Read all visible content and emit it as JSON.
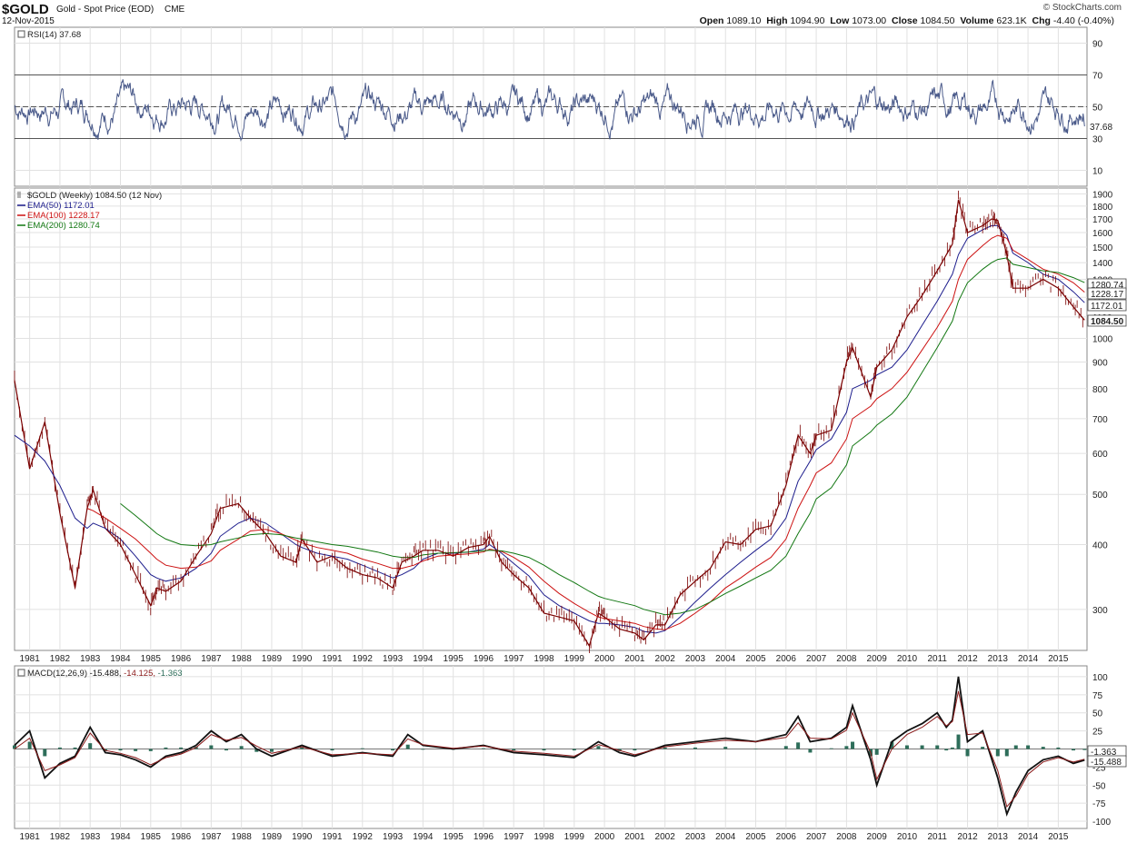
{
  "header": {
    "symbol": "$GOLD",
    "name": "Gold - Spot Price (EOD)",
    "exchange": "CME",
    "date": "12-Nov-2015",
    "watermark": "© StockCharts.com",
    "quote": [
      {
        "label": "Open",
        "value": "1089.10"
      },
      {
        "label": "High",
        "value": "1094.90"
      },
      {
        "label": "Low",
        "value": "1073.00"
      },
      {
        "label": "Close",
        "value": "1084.50"
      },
      {
        "label": "Volume",
        "value": "623.1K"
      },
      {
        "label": "Chg",
        "value": "-4.40 (-0.40%)"
      }
    ]
  },
  "chart_data": [
    {
      "type": "line",
      "panel": "rsi",
      "legend": "RSI(14) 37.68",
      "ylim": [
        0,
        100
      ],
      "yticks": [
        "10",
        "30",
        "50",
        "70",
        "90"
      ],
      "reference_lines": [
        30,
        50,
        70
      ],
      "last_value": "37.68",
      "color": "#4a5a8a"
    },
    {
      "type": "line",
      "panel": "price",
      "scale": "log",
      "title": "$GOLD (Weekly) 1084.50 (12 Nov)",
      "ylim": [
        250,
        1950
      ],
      "yticks": [
        "300",
        "400",
        "500",
        "600",
        "700",
        "800",
        "900",
        "1000",
        "1100",
        "1200",
        "1300",
        "1400",
        "1500",
        "1600",
        "1700",
        "1800",
        "1900"
      ],
      "last_price": "1084.50",
      "x": [
        "1980.5",
        "1981.0",
        "1981.5",
        "1982.0",
        "1982.5",
        "1982.9",
        "1983.1",
        "1983.5",
        "1984.0",
        "1984.5",
        "1985.0",
        "1985.2",
        "1985.5",
        "1986.0",
        "1986.5",
        "1987.0",
        "1987.3",
        "1987.9",
        "1988.3",
        "1988.8",
        "1989.3",
        "1989.8",
        "1990.0",
        "1990.5",
        "1991.0",
        "1991.5",
        "1992.0",
        "1992.5",
        "1993.0",
        "1993.3",
        "1993.7",
        "1994.0",
        "1994.5",
        "1995.0",
        "1995.5",
        "1996.0",
        "1996.2",
        "1996.6",
        "1997.0",
        "1997.5",
        "1998.0",
        "1998.5",
        "1999.0",
        "1999.5",
        "1999.8",
        "2000.0",
        "2000.5",
        "2001.0",
        "2001.3",
        "2001.7",
        "2002.0",
        "2002.5",
        "2003.0",
        "2003.5",
        "2004.0",
        "2004.5",
        "2005.0",
        "2005.5",
        "2006.0",
        "2006.4",
        "2006.8",
        "2007.0",
        "2007.5",
        "2008.0",
        "2008.2",
        "2008.8",
        "2009.0",
        "2009.5",
        "2010.0",
        "2010.5",
        "2011.0",
        "2011.5",
        "2011.7",
        "2012.0",
        "2012.5",
        "2012.8",
        "2013.0",
        "2013.3",
        "2013.5",
        "2014.0",
        "2014.5",
        "2015.0",
        "2015.5",
        "2015.87"
      ],
      "series": [
        {
          "name": "$GOLD",
          "color": "#7a0000",
          "values": [
            830,
            560,
            690,
            460,
            330,
            470,
            510,
            430,
            400,
            350,
            305,
            330,
            325,
            340,
            380,
            420,
            470,
            480,
            450,
            420,
            380,
            370,
            410,
            370,
            380,
            360,
            350,
            345,
            330,
            370,
            380,
            390,
            390,
            380,
            395,
            400,
            415,
            370,
            350,
            330,
            295,
            290,
            285,
            255,
            295,
            290,
            275,
            270,
            262,
            280,
            280,
            320,
            340,
            360,
            405,
            400,
            428,
            435,
            520,
            650,
            600,
            650,
            665,
            900,
            960,
            770,
            880,
            950,
            1100,
            1210,
            1350,
            1520,
            1850,
            1600,
            1650,
            1700,
            1690,
            1450,
            1250,
            1250,
            1300,
            1250,
            1150,
            1084.5
          ]
        },
        {
          "name": "EMA(50) 1172.01",
          "color": "#1c1c8c",
          "values": [
            650,
            620,
            580,
            520,
            450,
            430,
            440,
            430,
            410,
            380,
            350,
            345,
            340,
            345,
            360,
            385,
            415,
            440,
            450,
            440,
            420,
            400,
            395,
            385,
            380,
            375,
            365,
            355,
            345,
            350,
            360,
            375,
            385,
            385,
            387,
            392,
            400,
            385,
            368,
            348,
            320,
            305,
            295,
            285,
            282,
            282,
            280,
            277,
            272,
            270,
            273,
            290,
            310,
            330,
            350,
            370,
            390,
            410,
            450,
            530,
            580,
            610,
            640,
            720,
            800,
            830,
            850,
            880,
            950,
            1060,
            1180,
            1330,
            1450,
            1560,
            1620,
            1650,
            1650,
            1580,
            1460,
            1400,
            1330,
            1300,
            1230,
            1172
          ]
        },
        {
          "name": "EMA(100) 1228.17",
          "color": "#cc1111",
          "values": [
            null,
            null,
            null,
            null,
            null,
            470,
            465,
            450,
            430,
            410,
            385,
            375,
            365,
            360,
            362,
            372,
            390,
            410,
            425,
            428,
            420,
            408,
            403,
            395,
            390,
            385,
            375,
            368,
            360,
            360,
            365,
            372,
            380,
            382,
            384,
            387,
            392,
            388,
            378,
            362,
            340,
            322,
            308,
            296,
            290,
            288,
            285,
            282,
            278,
            275,
            274,
            282,
            295,
            310,
            330,
            345,
            362,
            378,
            410,
            470,
            520,
            550,
            575,
            640,
            700,
            740,
            765,
            800,
            860,
            950,
            1050,
            1180,
            1300,
            1420,
            1510,
            1560,
            1580,
            1560,
            1480,
            1420,
            1360,
            1330,
            1280,
            1228
          ]
        },
        {
          "name": "EMA(200) 1280.74",
          "color": "#117711",
          "values": [
            null,
            null,
            null,
            null,
            null,
            null,
            null,
            null,
            480,
            455,
            430,
            420,
            410,
            400,
            398,
            400,
            405,
            412,
            418,
            420,
            418,
            412,
            410,
            405,
            400,
            397,
            392,
            387,
            380,
            378,
            378,
            382,
            385,
            386,
            387,
            389,
            390,
            389,
            385,
            378,
            365,
            350,
            338,
            325,
            318,
            315,
            310,
            305,
            300,
            296,
            293,
            295,
            300,
            310,
            322,
            333,
            345,
            357,
            380,
            420,
            460,
            490,
            515,
            570,
            620,
            660,
            680,
            715,
            770,
            860,
            960,
            1080,
            1180,
            1280,
            1360,
            1400,
            1420,
            1430,
            1390,
            1370,
            1350,
            1340,
            1310,
            1281
          ]
        }
      ],
      "ema_legend": [
        {
          "label": "EMA(50)",
          "value": "1172.01",
          "color": "#1c1c8c"
        },
        {
          "label": "EMA(100)",
          "value": "1228.17",
          "color": "#cc1111"
        },
        {
          "label": "EMA(200)",
          "value": "1280.74",
          "color": "#117711"
        }
      ],
      "axis_labels": [
        {
          "text": "1280.74",
          "value": 1280.74,
          "highlight": false
        },
        {
          "text": "1228.17",
          "value": 1228.17,
          "highlight": false
        },
        {
          "text": "1172.01",
          "value": 1172.01,
          "highlight": false
        },
        {
          "text": "1084.50",
          "value": 1084.5,
          "highlight": true
        }
      ]
    },
    {
      "type": "line",
      "panel": "macd",
      "legend": {
        "label": "MACD(12,26,9)",
        "values": [
          "-15.488",
          "-14.125",
          "-1.363"
        ],
        "colors": [
          "#111111",
          "#8b1a1a",
          "#2e6e5a"
        ]
      },
      "ylim": [
        -110,
        115
      ],
      "yticks": [
        "-100",
        "-75",
        "-50",
        "-25",
        "0",
        "25",
        "50",
        "75",
        "100"
      ],
      "zero_line": 0,
      "x": [
        "1980.5",
        "1981.0",
        "1981.5",
        "1982.0",
        "1982.5",
        "1983.0",
        "1983.5",
        "1984.0",
        "1984.5",
        "1985.0",
        "1985.5",
        "1986.0",
        "1986.5",
        "1987.0",
        "1987.5",
        "1988.0",
        "1988.5",
        "1989.0",
        "1990.0",
        "1991.0",
        "1992.0",
        "1993.0",
        "1993.5",
        "1994.0",
        "1995.0",
        "1996.0",
        "1997.0",
        "1998.0",
        "1999.0",
        "1999.8",
        "2000.5",
        "2001.0",
        "2002.0",
        "2003.0",
        "2004.0",
        "2005.0",
        "2006.0",
        "2006.4",
        "2006.8",
        "2007.5",
        "2008.0",
        "2008.2",
        "2008.8",
        "2009.0",
        "2009.5",
        "2010.0",
        "2010.5",
        "2011.0",
        "2011.3",
        "2011.5",
        "2011.7",
        "2012.0",
        "2012.5",
        "2013.0",
        "2013.3",
        "2013.6",
        "2014.0",
        "2014.5",
        "2015.0",
        "2015.5",
        "2015.87"
      ],
      "series": [
        {
          "name": "MACD",
          "color": "#111111",
          "values": [
            5,
            25,
            -40,
            -20,
            -10,
            30,
            -5,
            -8,
            -15,
            -25,
            -10,
            -5,
            5,
            25,
            10,
            20,
            0,
            -10,
            5,
            -10,
            -5,
            -10,
            20,
            5,
            0,
            5,
            -5,
            -8,
            -12,
            10,
            -5,
            -10,
            5,
            10,
            15,
            10,
            20,
            45,
            10,
            15,
            30,
            60,
            -15,
            -50,
            10,
            25,
            35,
            50,
            30,
            40,
            100,
            10,
            25,
            -40,
            -90,
            -60,
            -30,
            -15,
            -10,
            -20,
            -15.5
          ]
        },
        {
          "name": "Signal",
          "color": "#8b1a1a",
          "values": [
            0,
            15,
            -30,
            -22,
            -12,
            22,
            -2,
            -6,
            -12,
            -22,
            -12,
            -7,
            2,
            20,
            12,
            16,
            4,
            -6,
            3,
            -8,
            -6,
            -8,
            14,
            6,
            1,
            4,
            -3,
            -6,
            -10,
            6,
            -2,
            -8,
            3,
            8,
            12,
            10,
            16,
            36,
            15,
            14,
            26,
            50,
            -5,
            -42,
            0,
            20,
            30,
            45,
            32,
            38,
            80,
            20,
            22,
            -30,
            -80,
            -65,
            -35,
            -18,
            -12,
            -18,
            -14.1
          ]
        }
      ],
      "histogram": {
        "name": "Histogram",
        "color": "#2e6e5a",
        "values": [
          5,
          10,
          -10,
          2,
          2,
          8,
          -3,
          -2,
          -3,
          -3,
          2,
          2,
          3,
          5,
          -2,
          4,
          -4,
          -4,
          2,
          -2,
          1,
          -2,
          6,
          -1,
          -1,
          1,
          -2,
          -2,
          -2,
          4,
          -3,
          -2,
          2,
          2,
          3,
          0,
          4,
          9,
          -5,
          1,
          4,
          10,
          -10,
          -8,
          10,
          5,
          5,
          5,
          -2,
          2,
          20,
          -10,
          3,
          -10,
          -10,
          5,
          5,
          3,
          2,
          -2,
          -1.4
        ]
      },
      "axis_labels": [
        {
          "text": "-1.363",
          "value": -1.363
        },
        {
          "text": "-15.488",
          "value": -15.488
        }
      ]
    }
  ],
  "x_axis": {
    "years": [
      "1981",
      "1982",
      "1983",
      "1984",
      "1985",
      "1986",
      "1987",
      "1988",
      "1989",
      "1990",
      "1991",
      "1992",
      "1993",
      "1994",
      "1995",
      "1996",
      "1997",
      "1998",
      "1999",
      "2000",
      "2001",
      "2002",
      "2003",
      "2004",
      "2005",
      "2006",
      "2007",
      "2008",
      "2009",
      "2010",
      "2011",
      "2012",
      "2013",
      "2014",
      "2015"
    ]
  }
}
